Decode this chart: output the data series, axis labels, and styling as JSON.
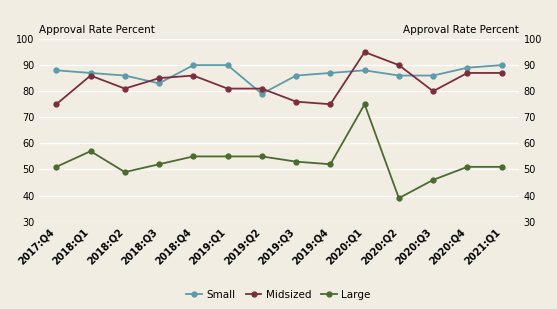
{
  "x_labels": [
    "2017:Q4",
    "2018:Q1",
    "2018:Q2",
    "2018:Q3",
    "2018:Q4",
    "2019:Q1",
    "2019:Q2",
    "2019:Q3",
    "2019:Q4",
    "2020:Q1",
    "2020:Q2",
    "2020:Q3",
    "2020:Q4",
    "2021:Q1"
  ],
  "small": [
    88,
    87,
    86,
    83,
    90,
    90,
    79,
    86,
    87,
    88,
    86,
    86,
    89,
    90
  ],
  "midsized": [
    75,
    86,
    81,
    85,
    86,
    81,
    81,
    76,
    75,
    95,
    90,
    80,
    87,
    87
  ],
  "large": [
    51,
    57,
    49,
    52,
    55,
    55,
    55,
    53,
    52,
    75,
    39,
    46,
    51,
    51
  ],
  "small_color": "#5b9baa",
  "midsized_color": "#7b2d3e",
  "large_color": "#4a6b30",
  "title_left": "Approval Rate Percent",
  "title_right": "Approval Rate Percent",
  "ylim": [
    30,
    100
  ],
  "yticks": [
    30,
    40,
    50,
    60,
    70,
    80,
    90,
    100
  ],
  "legend_labels": [
    "Small",
    "Midsized",
    "Large"
  ],
  "bg_color": "#f2ede3",
  "grid_color": "#ffffff",
  "marker": "o",
  "markersize": 3.5,
  "linewidth": 1.3,
  "tick_fontsize": 7,
  "legend_fontsize": 7.5,
  "title_fontsize": 7.5
}
